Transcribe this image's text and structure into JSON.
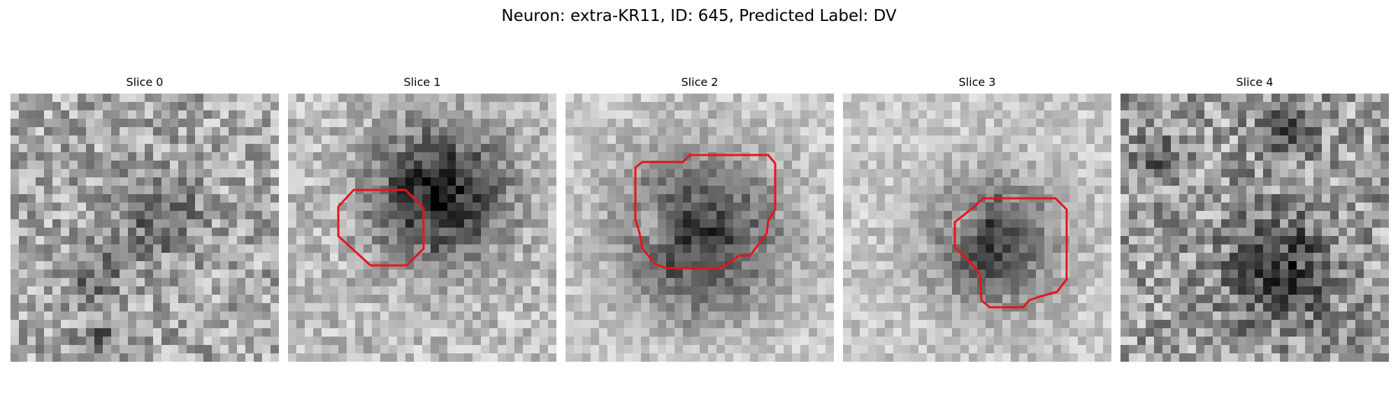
{
  "figure": {
    "title": "Neuron: extra-KR11, ID: 645, Predicted Label: DV"
  },
  "panels": [
    {
      "title": "Slice 0"
    },
    {
      "title": "Slice 1"
    },
    {
      "title": "Slice 2"
    },
    {
      "title": "Slice 3"
    },
    {
      "title": "Slice 4"
    }
  ],
  "colors": {
    "contour": "#e8141a",
    "colormap": "grayscale"
  }
}
